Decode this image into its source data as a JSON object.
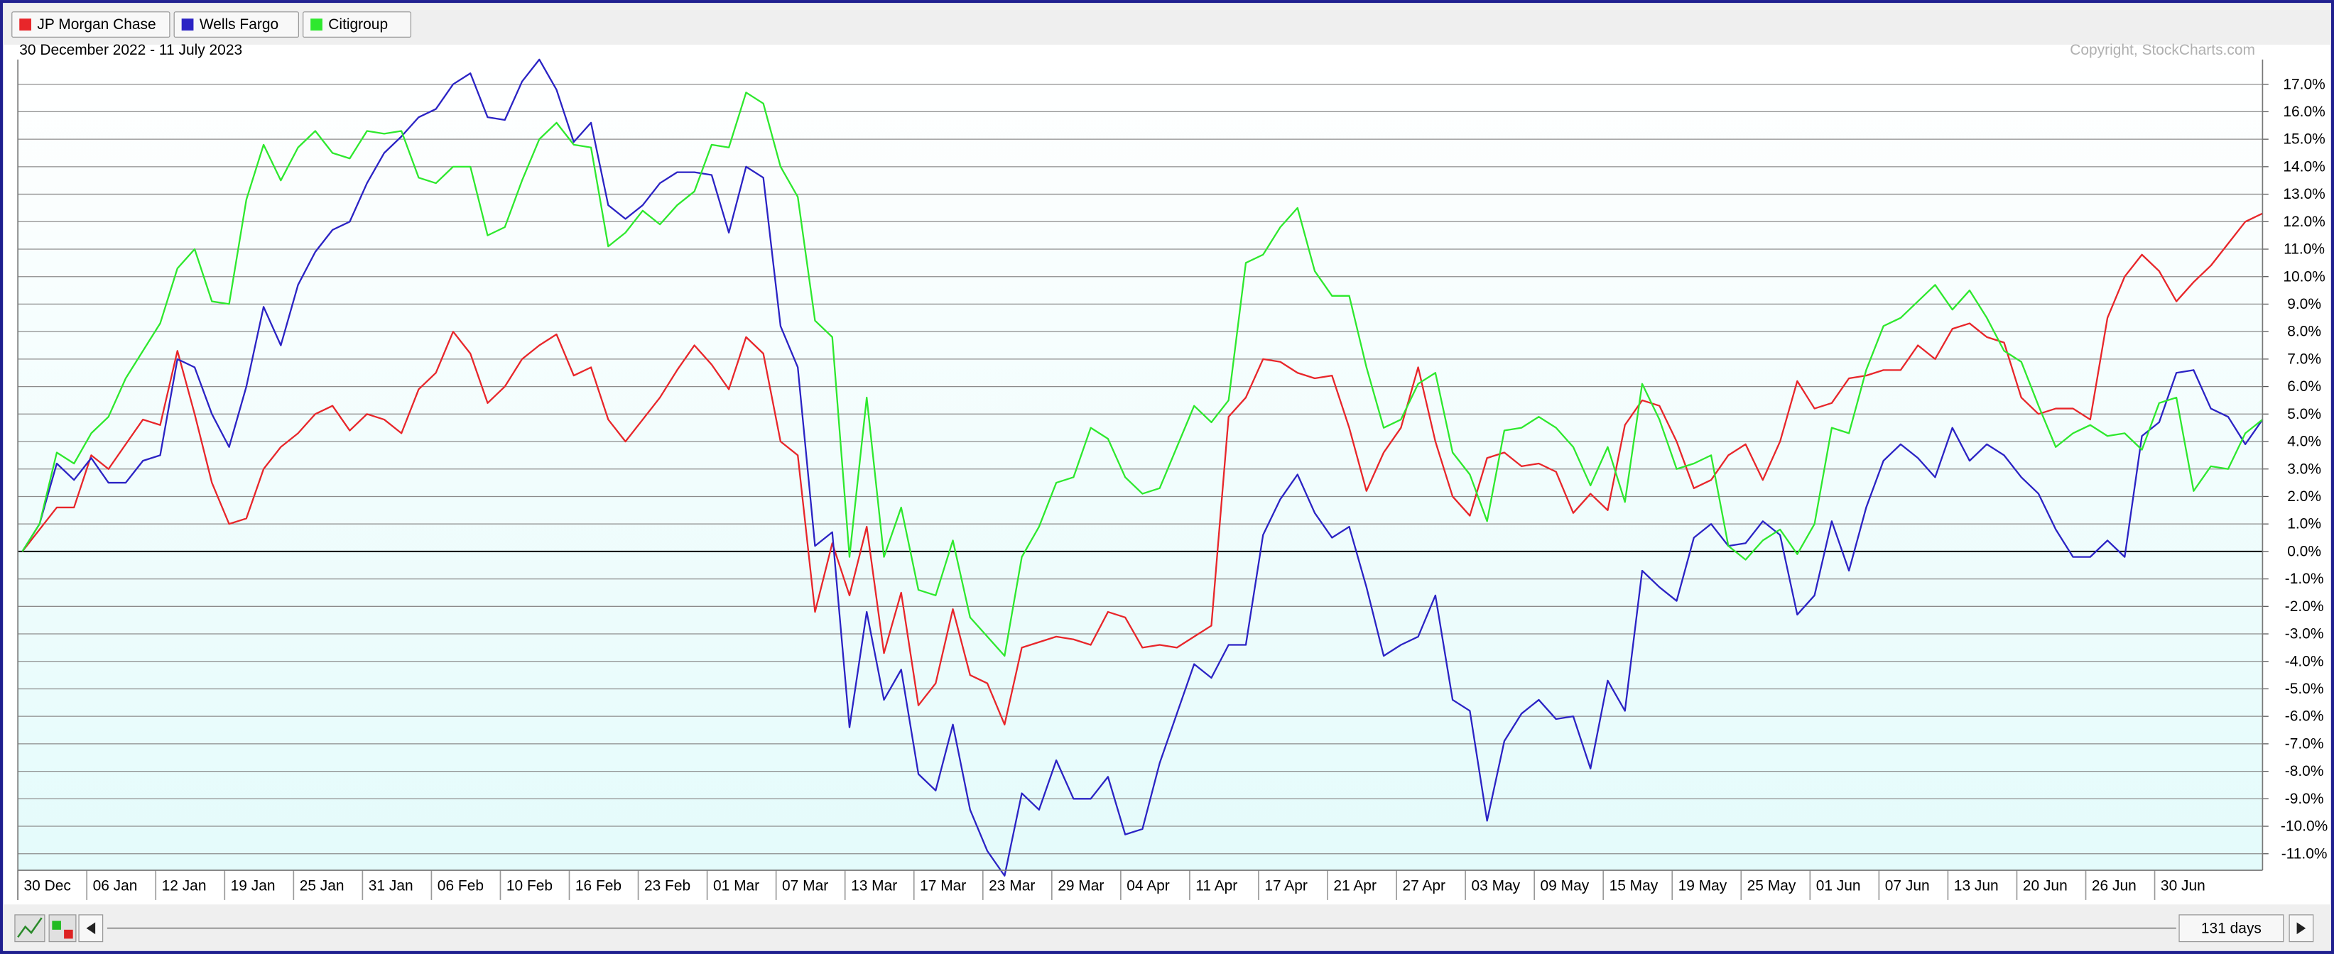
{
  "chart_data": {
    "type": "line",
    "subtitle": "30 December 2022 - 11 July 2023",
    "annotation": "Copyright, StockCharts.com",
    "categories": [
      "30 Dec",
      null,
      null,
      null,
      "06 Jan",
      null,
      null,
      null,
      "12 Jan",
      null,
      null,
      null,
      "19 Jan",
      null,
      null,
      null,
      "25 Jan",
      null,
      null,
      null,
      "31 Jan",
      null,
      null,
      null,
      "06 Feb",
      null,
      null,
      null,
      "10 Feb",
      null,
      null,
      null,
      "16 Feb",
      null,
      null,
      null,
      "23 Feb",
      null,
      null,
      null,
      "01 Mar",
      null,
      null,
      null,
      "07 Mar",
      null,
      null,
      null,
      "13 Mar",
      null,
      null,
      null,
      "17 Mar",
      null,
      null,
      null,
      "23 Mar",
      null,
      null,
      null,
      "29 Mar",
      null,
      null,
      null,
      "04 Apr",
      null,
      null,
      null,
      "11 Apr",
      null,
      null,
      null,
      "17 Apr",
      null,
      null,
      null,
      "21 Apr",
      null,
      null,
      null,
      "27 Apr",
      null,
      null,
      null,
      "03 May",
      null,
      null,
      null,
      "09 May",
      null,
      null,
      null,
      "15 May",
      null,
      null,
      null,
      "19 May",
      null,
      null,
      null,
      "25 May",
      null,
      null,
      null,
      "01 Jun",
      null,
      null,
      null,
      "07 Jun",
      null,
      null,
      null,
      "13 Jun",
      null,
      null,
      null,
      "20 Jun",
      null,
      null,
      null,
      "26 Jun",
      null,
      null,
      null,
      "30 Jun",
      null,
      null,
      null,
      null,
      null,
      null
    ],
    "series": [
      {
        "name": "JP Morgan Chase",
        "color": "#e8262a",
        "values": [
          0,
          0.8,
          1.6,
          1.6,
          3.5,
          3.0,
          3.9,
          4.8,
          4.6,
          7.3,
          5.0,
          2.5,
          1.0,
          1.2,
          3.0,
          3.8,
          4.3,
          5.0,
          5.3,
          4.4,
          5.0,
          4.8,
          4.3,
          5.9,
          6.5,
          8.0,
          7.2,
          5.4,
          6.0,
          7.0,
          7.5,
          7.9,
          6.4,
          6.7,
          4.8,
          4.0,
          4.8,
          5.6,
          6.6,
          7.5,
          6.8,
          5.9,
          7.8,
          7.2,
          4.0,
          3.5,
          -2.2,
          0.3,
          -1.6,
          0.9,
          -3.7,
          -1.5,
          -5.6,
          -4.8,
          -2.1,
          -4.5,
          -4.8,
          -6.3,
          -3.5,
          -3.3,
          -3.1,
          -3.2,
          -3.4,
          -2.2,
          -2.4,
          -3.5,
          -3.4,
          -3.5,
          -3.1,
          -2.7,
          4.9,
          5.6,
          7.0,
          6.9,
          6.5,
          6.3,
          6.4,
          4.5,
          2.2,
          3.6,
          4.5,
          6.7,
          4.0,
          2.0,
          1.3,
          3.4,
          3.6,
          3.1,
          3.2,
          2.9,
          1.4,
          2.1,
          1.5,
          4.6,
          5.5,
          5.3,
          4.0,
          2.3,
          2.6,
          3.5,
          3.9,
          2.6,
          4.0,
          6.2,
          5.2,
          5.4,
          6.3,
          6.4,
          6.6,
          6.6,
          7.5,
          7.0,
          8.1,
          8.3,
          7.8,
          7.6,
          5.6,
          5.0,
          5.2,
          5.2,
          4.8,
          8.5,
          10.0,
          10.8,
          10.2,
          9.1,
          9.8,
          10.4,
          11.2,
          12.0,
          12.3
        ]
      },
      {
        "name": "Wells Fargo",
        "color": "#2b23c4",
        "values": [
          0,
          1.0,
          3.2,
          2.6,
          3.4,
          2.5,
          2.5,
          3.3,
          3.5,
          7.0,
          6.7,
          5.0,
          3.8,
          6.0,
          8.9,
          7.5,
          9.7,
          10.9,
          11.7,
          12.0,
          13.4,
          14.5,
          15.1,
          15.8,
          16.1,
          17.0,
          17.4,
          15.8,
          15.7,
          17.1,
          17.9,
          16.8,
          14.9,
          15.6,
          12.6,
          12.1,
          12.6,
          13.4,
          13.8,
          13.8,
          13.7,
          11.6,
          14.0,
          13.6,
          8.2,
          6.7,
          0.2,
          0.7,
          -6.4,
          -2.2,
          -5.4,
          -4.3,
          -8.1,
          -8.7,
          -6.3,
          -9.4,
          -10.9,
          -11.8,
          -8.8,
          -9.4,
          -7.6,
          -9.0,
          -9.0,
          -8.2,
          -10.3,
          -10.1,
          -7.7,
          -5.9,
          -4.1,
          -4.6,
          -3.4,
          -3.4,
          0.6,
          1.9,
          2.8,
          1.4,
          0.5,
          0.9,
          -1.3,
          -3.8,
          -3.4,
          -3.1,
          -1.6,
          -5.4,
          -5.8,
          -9.8,
          -6.9,
          -5.9,
          -5.4,
          -6.1,
          -6.0,
          -7.9,
          -4.7,
          -5.8,
          -0.7,
          -1.3,
          -1.8,
          0.5,
          1.0,
          0.2,
          0.3,
          1.1,
          0.6,
          -2.3,
          -1.6,
          1.1,
          -0.7,
          1.6,
          3.3,
          3.9,
          3.4,
          2.7,
          4.5,
          3.3,
          3.9,
          3.5,
          2.7,
          2.1,
          0.8,
          -0.2,
          -0.2,
          0.4,
          -0.2,
          4.2,
          4.7,
          6.5,
          6.6,
          5.2,
          4.9,
          3.9,
          4.8
        ]
      },
      {
        "name": "Citigroup",
        "color": "#2ee82e",
        "values": [
          0,
          1.0,
          3.6,
          3.2,
          4.3,
          4.9,
          6.3,
          7.3,
          8.3,
          10.3,
          11.0,
          9.1,
          9.0,
          12.8,
          14.8,
          13.5,
          14.7,
          15.3,
          14.5,
          14.3,
          15.3,
          15.2,
          15.3,
          13.6,
          13.4,
          14.0,
          14.0,
          11.5,
          11.8,
          13.5,
          15.0,
          15.6,
          14.8,
          14.7,
          11.1,
          11.6,
          12.4,
          11.9,
          12.6,
          13.1,
          14.8,
          14.7,
          16.7,
          16.3,
          14.0,
          12.9,
          8.4,
          7.8,
          -0.2,
          5.6,
          -0.2,
          1.6,
          -1.4,
          -1.6,
          0.4,
          -2.4,
          -3.1,
          -3.8,
          -0.2,
          0.9,
          2.5,
          2.7,
          4.5,
          4.1,
          2.7,
          2.1,
          2.3,
          3.8,
          5.3,
          4.7,
          5.5,
          10.5,
          10.8,
          11.8,
          12.5,
          10.2,
          9.3,
          9.3,
          6.7,
          4.5,
          4.8,
          6.1,
          6.5,
          3.6,
          2.8,
          1.1,
          4.4,
          4.5,
          4.9,
          4.5,
          3.8,
          2.4,
          3.8,
          1.8,
          6.1,
          4.8,
          3.0,
          3.2,
          3.5,
          0.2,
          -0.3,
          0.4,
          0.8,
          -0.1,
          1.0,
          4.5,
          4.3,
          6.6,
          8.2,
          8.5,
          9.1,
          9.7,
          8.8,
          9.5,
          8.5,
          7.3,
          6.9,
          5.3,
          3.8,
          4.3,
          4.6,
          4.2,
          4.3,
          3.7,
          5.4,
          5.6,
          2.2,
          3.1,
          3.0,
          4.3,
          4.8
        ]
      }
    ],
    "ylim": [
      -11.6,
      17.9
    ],
    "yticks": [
      {
        "value": -11,
        "label": "-11.0%"
      },
      {
        "value": -10,
        "label": "-10.0%"
      },
      {
        "value": -9,
        "label": "-9.0%"
      },
      {
        "value": -8,
        "label": "-8.0%"
      },
      {
        "value": -7,
        "label": "-7.0%"
      },
      {
        "value": -6,
        "label": "-6.0%"
      },
      {
        "value": -5,
        "label": "-5.0%"
      },
      {
        "value": -4,
        "label": "-4.0%"
      },
      {
        "value": -3,
        "label": "-3.0%"
      },
      {
        "value": -2,
        "label": "-2.0%"
      },
      {
        "value": -1,
        "label": "-1.0%"
      },
      {
        "value": 0,
        "label": "0.0%"
      },
      {
        "value": 1,
        "label": "1.0%"
      },
      {
        "value": 2,
        "label": "2.0%"
      },
      {
        "value": 3,
        "label": "3.0%"
      },
      {
        "value": 4,
        "label": "4.0%"
      },
      {
        "value": 5,
        "label": "5.0%"
      },
      {
        "value": 6,
        "label": "6.0%"
      },
      {
        "value": 7,
        "label": "7.0%"
      },
      {
        "value": 8,
        "label": "8.0%"
      },
      {
        "value": 9,
        "label": "9.0%"
      },
      {
        "value": 10,
        "label": "10.0%"
      },
      {
        "value": 11,
        "label": "11.0%"
      },
      {
        "value": 12,
        "label": "12.0%"
      },
      {
        "value": 13,
        "label": "13.0%"
      },
      {
        "value": 14,
        "label": "14.0%"
      },
      {
        "value": 15,
        "label": "15.0%"
      },
      {
        "value": 16,
        "label": "16.0%"
      },
      {
        "value": 17,
        "label": "17.0%"
      }
    ],
    "grid": true
  },
  "controls": {
    "period": "131 days"
  }
}
